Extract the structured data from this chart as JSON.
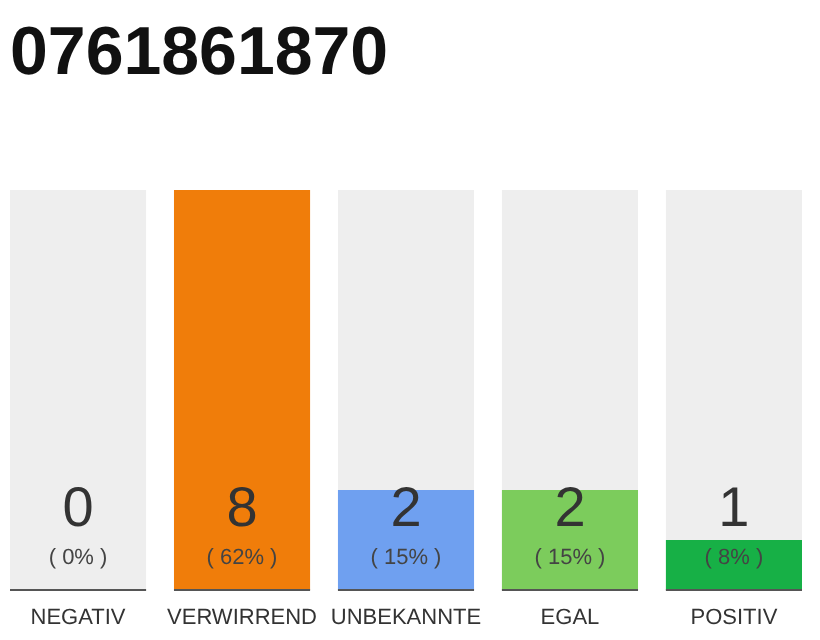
{
  "chart_data": {
    "type": "bar",
    "title": "0761861870",
    "categories": [
      "NEGATIV",
      "VERWIRREND",
      "UNBEKANNTE",
      "EGAL",
      "POSITIV"
    ],
    "values": [
      0,
      8,
      2,
      2,
      1
    ],
    "colors": [
      "#f07d0a",
      "#f07d0a",
      "#6fa0f0",
      "#7ccc5c",
      "#17b046"
    ],
    "ylim": [
      0,
      8
    ],
    "data_labels": true,
    "annotations": [
      "( 0% )",
      "( 62% )",
      "( 15% )",
      "( 15% )",
      "( 8% )"
    ],
    "grid": false
  }
}
